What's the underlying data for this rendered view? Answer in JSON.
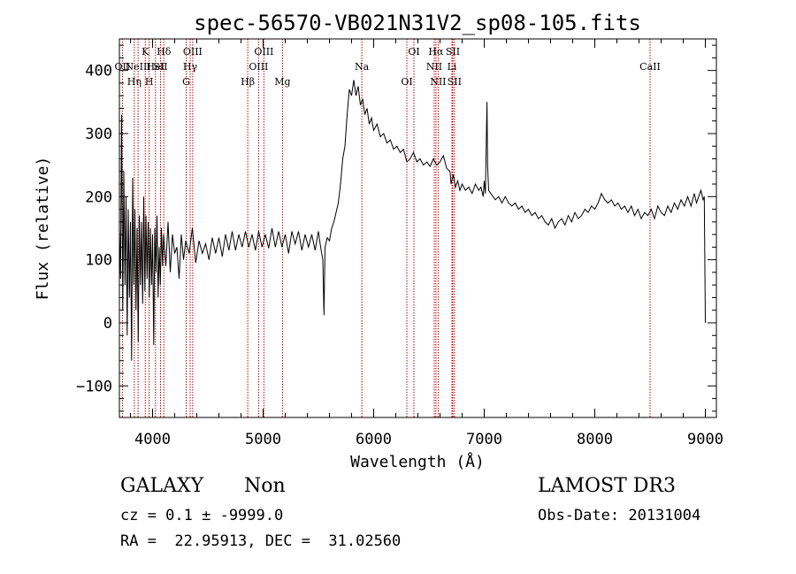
{
  "chart_data": {
    "type": "line",
    "title": "spec-56570-VB021N31V2_sp08-105.fits",
    "xlabel": "Wavelength (Å)",
    "ylabel": "Flux (relative)",
    "xlim": [
      3700,
      9100
    ],
    "ylim": [
      -150,
      450
    ],
    "xticks": [
      4000,
      5000,
      6000,
      7000,
      8000,
      9000
    ],
    "yticks": [
      -100,
      0,
      100,
      200,
      300,
      400
    ],
    "xtick_labels": [
      "4000",
      "5000",
      "6000",
      "7000",
      "8000",
      "9000"
    ],
    "ytick_labels": [
      "−100",
      "0",
      "100",
      "200",
      "300",
      "400"
    ],
    "series": [
      {
        "name": "flux",
        "color": "#000000",
        "points": [
          [
            3700,
            150
          ],
          [
            3710,
            70
          ],
          [
            3720,
            330
          ],
          [
            3730,
            20
          ],
          [
            3740,
            240
          ],
          [
            3750,
            60
          ],
          [
            3760,
            200
          ],
          [
            3770,
            -20
          ],
          [
            3780,
            180
          ],
          [
            3790,
            40
          ],
          [
            3800,
            160
          ],
          [
            3810,
            -60
          ],
          [
            3820,
            230
          ],
          [
            3830,
            60
          ],
          [
            3840,
            180
          ],
          [
            3850,
            20
          ],
          [
            3860,
            150
          ],
          [
            3870,
            -30
          ],
          [
            3880,
            170
          ],
          [
            3890,
            60
          ],
          [
            3900,
            160
          ],
          [
            3910,
            30
          ],
          [
            3920,
            200
          ],
          [
            3930,
            50
          ],
          [
            3940,
            170
          ],
          [
            3950,
            70
          ],
          [
            3960,
            160
          ],
          [
            3970,
            40
          ],
          [
            3980,
            150
          ],
          [
            3990,
            60
          ],
          [
            4000,
            140
          ],
          [
            4010,
            -35
          ],
          [
            4020,
            150
          ],
          [
            4030,
            80
          ],
          [
            4040,
            170
          ],
          [
            4050,
            40
          ],
          [
            4060,
            120
          ],
          [
            4070,
            60
          ],
          [
            4080,
            150
          ],
          [
            4090,
            90
          ],
          [
            4100,
            140
          ],
          [
            4120,
            90
          ],
          [
            4140,
            160
          ],
          [
            4160,
            80
          ],
          [
            4180,
            140
          ],
          [
            4200,
            110
          ],
          [
            4220,
            120
          ],
          [
            4240,
            70
          ],
          [
            4260,
            140
          ],
          [
            4280,
            100
          ],
          [
            4300,
            130
          ],
          [
            4330,
            110
          ],
          [
            4360,
            150
          ],
          [
            4390,
            95
          ],
          [
            4420,
            130
          ],
          [
            4450,
            110
          ],
          [
            4480,
            125
          ],
          [
            4510,
            100
          ],
          [
            4540,
            135
          ],
          [
            4570,
            110
          ],
          [
            4600,
            135
          ],
          [
            4630,
            105
          ],
          [
            4660,
            140
          ],
          [
            4690,
            115
          ],
          [
            4720,
            145
          ],
          [
            4750,
            115
          ],
          [
            4780,
            140
          ],
          [
            4810,
            120
          ],
          [
            4840,
            145
          ],
          [
            4870,
            120
          ],
          [
            4900,
            140
          ],
          [
            4930,
            115
          ],
          [
            4960,
            145
          ],
          [
            4990,
            120
          ],
          [
            5020,
            140
          ],
          [
            5050,
            118
          ],
          [
            5080,
            150
          ],
          [
            5110,
            120
          ],
          [
            5140,
            145
          ],
          [
            5170,
            120
          ],
          [
            5200,
            140
          ],
          [
            5230,
            110
          ],
          [
            5260,
            145
          ],
          [
            5290,
            125
          ],
          [
            5320,
            145
          ],
          [
            5350,
            115
          ],
          [
            5380,
            140
          ],
          [
            5410,
            120
          ],
          [
            5440,
            140
          ],
          [
            5470,
            115
          ],
          [
            5500,
            145
          ],
          [
            5520,
            120
          ],
          [
            5540,
            100
          ],
          [
            5550,
            12
          ],
          [
            5560,
            120
          ],
          [
            5580,
            135
          ],
          [
            5600,
            130
          ],
          [
            5620,
            150
          ],
          [
            5640,
            160
          ],
          [
            5660,
            175
          ],
          [
            5680,
            190
          ],
          [
            5700,
            220
          ],
          [
            5720,
            260
          ],
          [
            5740,
            280
          ],
          [
            5760,
            330
          ],
          [
            5780,
            370
          ],
          [
            5800,
            360
          ],
          [
            5820,
            385
          ],
          [
            5840,
            360
          ],
          [
            5860,
            375
          ],
          [
            5880,
            345
          ],
          [
            5900,
            355
          ],
          [
            5920,
            330
          ],
          [
            5940,
            340
          ],
          [
            5960,
            315
          ],
          [
            5980,
            325
          ],
          [
            6000,
            305
          ],
          [
            6030,
            315
          ],
          [
            6060,
            295
          ],
          [
            6090,
            300
          ],
          [
            6120,
            285
          ],
          [
            6150,
            290
          ],
          [
            6180,
            275
          ],
          [
            6210,
            280
          ],
          [
            6240,
            270
          ],
          [
            6270,
            275
          ],
          [
            6300,
            255
          ],
          [
            6330,
            260
          ],
          [
            6360,
            270
          ],
          [
            6390,
            255
          ],
          [
            6420,
            260
          ],
          [
            6450,
            250
          ],
          [
            6480,
            255
          ],
          [
            6510,
            248
          ],
          [
            6540,
            260
          ],
          [
            6570,
            250
          ],
          [
            6600,
            255
          ],
          [
            6630,
            265
          ],
          [
            6660,
            245
          ],
          [
            6690,
            240
          ],
          [
            6700,
            220
          ],
          [
            6720,
            235
          ],
          [
            6740,
            215
          ],
          [
            6760,
            225
          ],
          [
            6780,
            210
          ],
          [
            6800,
            220
          ],
          [
            6830,
            210
          ],
          [
            6860,
            215
          ],
          [
            6890,
            205
          ],
          [
            6920,
            220
          ],
          [
            6950,
            210
          ],
          [
            6970,
            215
          ],
          [
            6990,
            200
          ],
          [
            7000,
            225
          ],
          [
            7010,
            205
          ],
          [
            7020,
            300
          ],
          [
            7025,
            350
          ],
          [
            7030,
            250
          ],
          [
            7040,
            210
          ],
          [
            7060,
            205
          ],
          [
            7080,
            200
          ],
          [
            7100,
            195
          ],
          [
            7130,
            200
          ],
          [
            7160,
            190
          ],
          [
            7190,
            200
          ],
          [
            7220,
            190
          ],
          [
            7250,
            185
          ],
          [
            7280,
            190
          ],
          [
            7310,
            180
          ],
          [
            7340,
            185
          ],
          [
            7370,
            175
          ],
          [
            7400,
            180
          ],
          [
            7430,
            170
          ],
          [
            7460,
            175
          ],
          [
            7490,
            165
          ],
          [
            7520,
            170
          ],
          [
            7550,
            160
          ],
          [
            7580,
            155
          ],
          [
            7610,
            165
          ],
          [
            7640,
            150
          ],
          [
            7670,
            160
          ],
          [
            7700,
            165
          ],
          [
            7730,
            155
          ],
          [
            7760,
            170
          ],
          [
            7790,
            160
          ],
          [
            7820,
            175
          ],
          [
            7850,
            165
          ],
          [
            7880,
            170
          ],
          [
            7910,
            180
          ],
          [
            7940,
            175
          ],
          [
            7970,
            185
          ],
          [
            8000,
            180
          ],
          [
            8030,
            190
          ],
          [
            8060,
            205
          ],
          [
            8090,
            195
          ],
          [
            8120,
            190
          ],
          [
            8150,
            195
          ],
          [
            8180,
            185
          ],
          [
            8210,
            190
          ],
          [
            8240,
            180
          ],
          [
            8270,
            185
          ],
          [
            8300,
            175
          ],
          [
            8330,
            185
          ],
          [
            8360,
            170
          ],
          [
            8390,
            180
          ],
          [
            8420,
            165
          ],
          [
            8450,
            175
          ],
          [
            8480,
            170
          ],
          [
            8510,
            180
          ],
          [
            8540,
            165
          ],
          [
            8570,
            185
          ],
          [
            8600,
            175
          ],
          [
            8630,
            170
          ],
          [
            8660,
            185
          ],
          [
            8690,
            175
          ],
          [
            8720,
            190
          ],
          [
            8750,
            180
          ],
          [
            8780,
            195
          ],
          [
            8810,
            185
          ],
          [
            8840,
            200
          ],
          [
            8870,
            185
          ],
          [
            8900,
            205
          ],
          [
            8920,
            190
          ],
          [
            8940,
            200
          ],
          [
            8960,
            210
          ],
          [
            8980,
            195
          ],
          [
            8990,
            200
          ],
          [
            9000,
            0
          ]
        ]
      }
    ],
    "line_markers": [
      {
        "wavelength": 3727,
        "label": "OII",
        "row": 2
      },
      {
        "wavelength": 3835,
        "label": "Hη",
        "row": 3
      },
      {
        "wavelength": 3869,
        "label": "NeIII",
        "row": 2
      },
      {
        "wavelength": 3934,
        "label": "K",
        "row": 1
      },
      {
        "wavelength": 3969,
        "label": "H",
        "row": 3
      },
      {
        "wavelength": 4026,
        "label": "HeI",
        "row": 2
      },
      {
        "wavelength": 4102,
        "label": "Hδ",
        "row": 1
      },
      {
        "wavelength": 4072,
        "label": "SII",
        "row": 2
      },
      {
        "wavelength": 4304,
        "label": "G",
        "row": 3
      },
      {
        "wavelength": 4340,
        "label": "Hγ",
        "row": 2
      },
      {
        "wavelength": 4363,
        "label": "OIII",
        "row": 1
      },
      {
        "wavelength": 4861,
        "label": "Hβ",
        "row": 3
      },
      {
        "wavelength": 4959,
        "label": "OIII",
        "row": 2
      },
      {
        "wavelength": 5007,
        "label": "OIII",
        "row": 1
      },
      {
        "wavelength": 5175,
        "label": "Mg",
        "row": 3
      },
      {
        "wavelength": 5893,
        "label": "Na",
        "row": 2
      },
      {
        "wavelength": 6300,
        "label": "OI",
        "row": 3
      },
      {
        "wavelength": 6364,
        "label": "OI",
        "row": 1
      },
      {
        "wavelength": 6548,
        "label": "NII",
        "row": 2
      },
      {
        "wavelength": 6563,
        "label": "Hα",
        "row": 1
      },
      {
        "wavelength": 6583,
        "label": "NII",
        "row": 3
      },
      {
        "wavelength": 6708,
        "label": "Li",
        "row": 2
      },
      {
        "wavelength": 6716,
        "label": "SII",
        "row": 1
      },
      {
        "wavelength": 6731,
        "label": "SII",
        "row": 3
      },
      {
        "wavelength": 8500,
        "label": "CaII",
        "row": 2
      }
    ],
    "marker_color": "#cc0000",
    "grid": false
  },
  "info": {
    "object_class": "GALAXY",
    "subclass": "Non",
    "survey": "LAMOST DR3",
    "cz_line": "cz = 0.1 ± -9999.0",
    "obs_date": "Obs-Date: 20131004",
    "coords": "RA =  22.95913, DEC =  31.02560"
  }
}
